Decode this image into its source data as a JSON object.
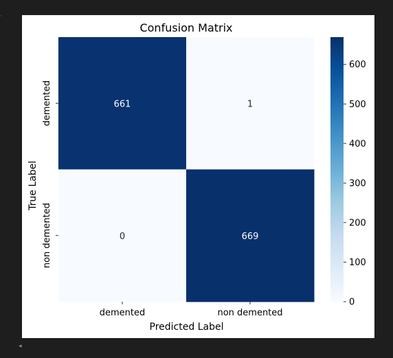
{
  "colors": {
    "page_background": "#1e1e1e",
    "panel_background": "#ffffff",
    "colormap_low": "#f7fbff",
    "colormap_high": "#08306b",
    "annotation_on_dark": "#ffffff",
    "annotation_on_light": "#262626"
  },
  "icons": {
    "scroll_left": "◂",
    "cursor": "·"
  },
  "chart_data": {
    "type": "heatmap",
    "title": "Confusion Matrix",
    "xlabel": "Predicted Label",
    "ylabel": "True Label",
    "x_categories": [
      "demented",
      "non demented"
    ],
    "y_categories": [
      "demented",
      "non demented"
    ],
    "values": [
      [
        661,
        1
      ],
      [
        0,
        669
      ]
    ],
    "annotations": [
      [
        "661",
        "1"
      ],
      [
        "0",
        "669"
      ]
    ],
    "colorbar": {
      "min": 0,
      "max": 669,
      "ticks": [
        0,
        100,
        200,
        300,
        400,
        500,
        600
      ],
      "tick_labels": [
        "0",
        "100",
        "200",
        "300",
        "400",
        "500",
        "600"
      ]
    },
    "colormap": "Blues",
    "grid": false,
    "legend": "colorbar-right"
  }
}
